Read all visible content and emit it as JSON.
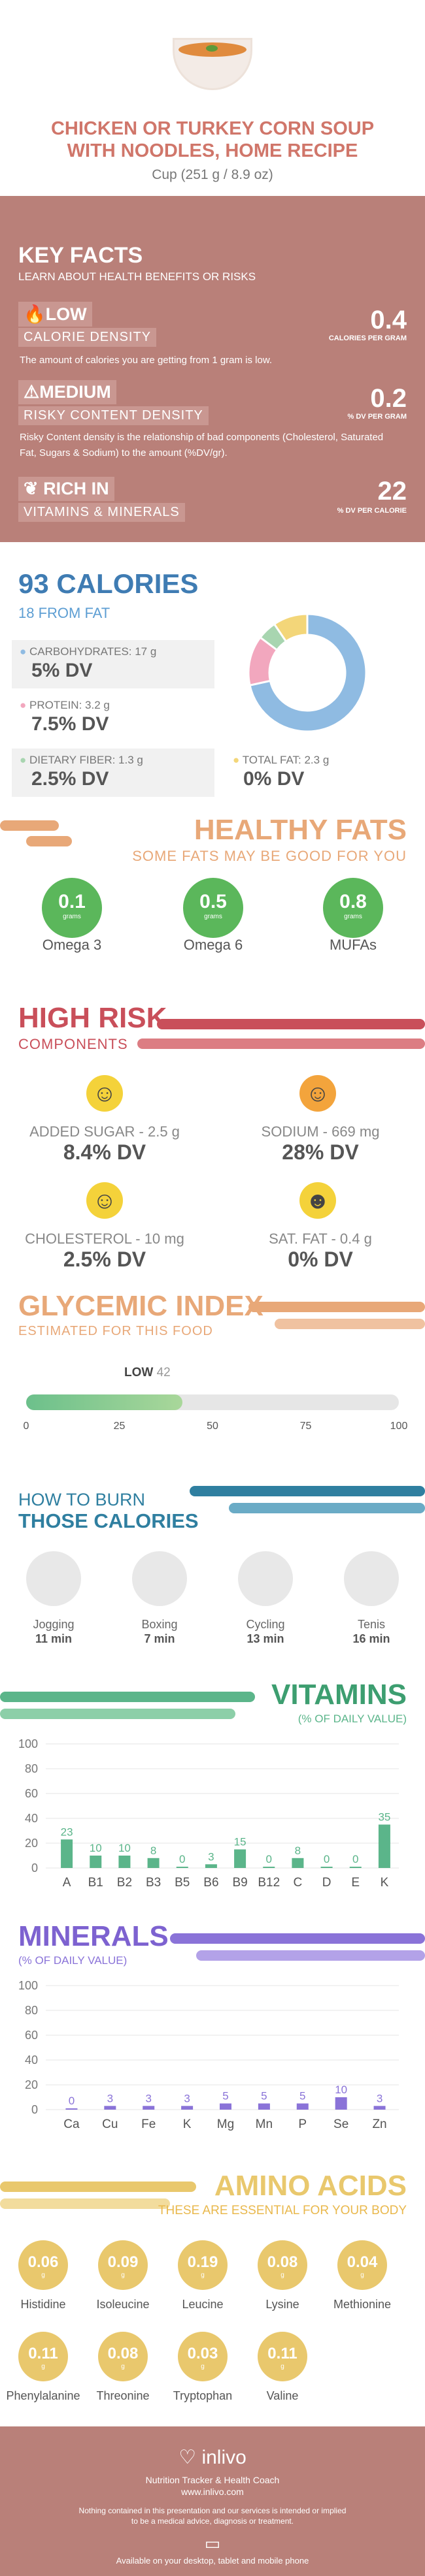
{
  "header": {
    "title_line1": "CHICKEN OR TURKEY CORN SOUP",
    "title_line2": "WITH NOODLES, HOME RECIPE",
    "serving": "Cup (251 g / 8.9 oz)"
  },
  "key_facts": {
    "title": "KEY FACTS",
    "subtitle": "LEARN ABOUT HEALTH BENEFITS OR RISKS",
    "calorie_density": {
      "level": "LOW",
      "label": "CALORIE DENSITY",
      "value": "0.4",
      "unit": "CALORIES PER GRAM",
      "description": "The amount of calories you are getting from 1 gram is low."
    },
    "risky_density": {
      "level": "MEDIUM",
      "label": "RISKY CONTENT DENSITY",
      "value": "0.2",
      "unit": "% DV PER GRAM",
      "description": "Risky Content density is the relationship of bad components (Cholesterol, Saturated Fat, Sugars & Sodium) to the amount (%DV/gr)."
    },
    "vitamins_minerals": {
      "level": "RICH IN",
      "label": "VITAMINS & MINERALS",
      "value": "22",
      "unit": "% DV PER CALORIE"
    }
  },
  "calories": {
    "title": "93 CALORIES",
    "subtitle": "18 FROM FAT",
    "carbs_label": "CARBOHYDRATES: 17 g",
    "carbs_dv": "5% DV",
    "protein_label": "PROTEIN: 3.2 g",
    "protein_dv": "7.5% DV",
    "fiber_label": "DIETARY FIBER: 1.3 g",
    "fiber_dv": "2.5% DV",
    "fat_label": "TOTAL FAT: 2.3 g",
    "fat_dv": "0% DV",
    "donut": [
      {
        "name": "carbohydrates",
        "value": 68,
        "color": "#8fbbe2"
      },
      {
        "name": "protein",
        "value": 13,
        "color": "#f2a7be"
      },
      {
        "name": "fiber",
        "value": 5,
        "color": "#a8d5b0"
      },
      {
        "name": "fat",
        "value": 9,
        "color": "#f3d679"
      }
    ]
  },
  "healthy_fats": {
    "title": "HEALTHY FATS",
    "subtitle": "SOME FATS MAY BE GOOD FOR YOU",
    "items": [
      {
        "value": "0.1",
        "unit": "grams",
        "label": "Omega 3"
      },
      {
        "value": "0.5",
        "unit": "grams",
        "label": "Omega 6"
      },
      {
        "value": "0.8",
        "unit": "grams",
        "label": "MUFAs"
      }
    ]
  },
  "high_risk": {
    "title": "HIGH RISK",
    "subtitle": "COMPONENTS",
    "items": [
      {
        "label": "ADDED SUGAR - 2.5 g",
        "dv": "8.4% DV",
        "face": "☺",
        "color": "#f4d23a"
      },
      {
        "label": "SODIUM - 669 mg",
        "dv": "28% DV",
        "face": "☺",
        "color": "#f3a43c"
      },
      {
        "label": "CHOLESTEROL - 10 mg",
        "dv": "2.5% DV",
        "face": "☺",
        "color": "#f4d23a"
      },
      {
        "label": "SAT. FAT - 0.4 g",
        "dv": "0% DV",
        "face": "☻",
        "color": "#f4d23a"
      }
    ]
  },
  "glycemic": {
    "title": "GLYCEMIC INDEX",
    "subtitle": "ESTIMATED FOR THIS FOOD",
    "level": "LOW",
    "value": 42,
    "ticks": [
      "0",
      "25",
      "50",
      "75",
      "100"
    ]
  },
  "burn": {
    "title1": "HOW TO BURN",
    "title2": "THOSE CALORIES",
    "items": [
      {
        "name": "Jogging",
        "time": "11 min",
        "icon": "jogging-icon"
      },
      {
        "name": "Boxing",
        "time": "7 min",
        "icon": "boxing-icon"
      },
      {
        "name": "Cycling",
        "time": "13 min",
        "icon": "cycling-icon"
      },
      {
        "name": "Tenis",
        "time": "16 min",
        "icon": "tennis-icon"
      }
    ]
  },
  "vitamins": {
    "title": "VITAMINS",
    "subtitle": "(% OF DAILY VALUE)",
    "color": "#5bb58a"
  },
  "minerals": {
    "title": "MINERALS",
    "subtitle": "(% OF DAILY VALUE)",
    "color": "#8a73d8"
  },
  "chart_data": [
    {
      "type": "bar",
      "title": "VITAMINS",
      "categories": [
        "A",
        "B1",
        "B2",
        "B3",
        "B5",
        "B6",
        "B9",
        "B12",
        "C",
        "D",
        "E",
        "K"
      ],
      "values": [
        23,
        10,
        10,
        8,
        0,
        3,
        15,
        0,
        8,
        0,
        0,
        35
      ],
      "ylim": [
        0,
        100
      ],
      "yticks": [
        "0",
        "20",
        "40",
        "60",
        "80",
        "100"
      ]
    },
    {
      "type": "bar",
      "title": "MINERALS",
      "categories": [
        "Ca",
        "Cu",
        "Fe",
        "K",
        "Mg",
        "Mn",
        "P",
        "Se",
        "Zn"
      ],
      "values": [
        0,
        3,
        3,
        3,
        5,
        5,
        5,
        10,
        3
      ],
      "ylim": [
        0,
        100
      ],
      "yticks": [
        "0",
        "20",
        "40",
        "60",
        "80",
        "100"
      ]
    }
  ],
  "amino": {
    "title": "AMINO ACIDS",
    "subtitle": "THESE ARE ESSENTIAL FOR YOUR BODY",
    "items": [
      {
        "value": "0.06",
        "unit": "g",
        "label": "Histidine"
      },
      {
        "value": "0.09",
        "unit": "g",
        "label": "Isoleucine"
      },
      {
        "value": "0.19",
        "unit": "g",
        "label": "Leucine"
      },
      {
        "value": "0.08",
        "unit": "g",
        "label": "Lysine"
      },
      {
        "value": "0.04",
        "unit": "g",
        "label": "Methionine"
      },
      {
        "value": "0.11",
        "unit": "g",
        "label": "Phenylalanine"
      },
      {
        "value": "0.08",
        "unit": "g",
        "label": "Threonine"
      },
      {
        "value": "0.03",
        "unit": "g",
        "label": "Tryptophan"
      },
      {
        "value": "0.11",
        "unit": "g",
        "label": "Valine"
      }
    ]
  },
  "footer": {
    "brand": "inlivo",
    "tagline": "Nutrition Tracker & Health Coach",
    "url": "www.inlivo.com",
    "disclaimer1": "Nothing contained in this presentation and our services is intended or implied",
    "disclaimer2": "to be a medical advice, diagnosis or treatment.",
    "available": "Available on your desktop, tablet and mobile phone"
  }
}
